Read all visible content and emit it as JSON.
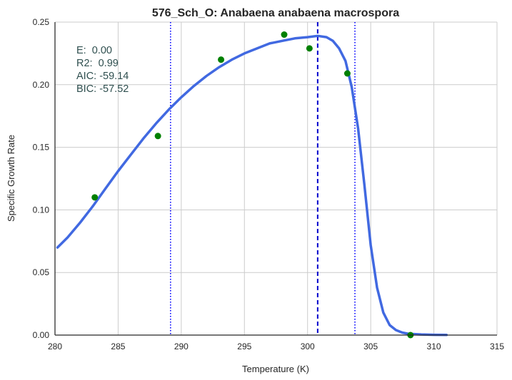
{
  "chart_data": {
    "type": "line",
    "title": "576_Sch_O: Anabaena anabaena macrospora",
    "xlabel": "Temperature (K)",
    "ylabel": "Specific Growth Rate",
    "xlim": [
      280,
      315
    ],
    "ylim": [
      0,
      0.25
    ],
    "xticks": [
      280,
      285,
      290,
      295,
      300,
      305,
      310,
      315
    ],
    "xtick_labels": [
      "280",
      "285",
      "290",
      "295",
      "300",
      "305",
      "310",
      "315"
    ],
    "yticks": [
      0.0,
      0.05,
      0.1,
      0.15,
      0.2,
      0.25
    ],
    "ytick_labels": [
      "0.00",
      "0.05",
      "0.10",
      "0.15",
      "0.20",
      "0.25"
    ],
    "grid": true,
    "stats": [
      "E:  0.00",
      "R2:  0.99",
      "AIC: -59.14",
      "BIC: -57.52"
    ],
    "observed": {
      "color": "#008000",
      "x": [
        283.15,
        288.15,
        293.15,
        298.15,
        300.15,
        303.15,
        308.15
      ],
      "y": [
        0.11,
        0.159,
        0.22,
        0.24,
        0.229,
        0.209,
        0.0
      ]
    },
    "fitted": {
      "color": "#4169e1",
      "x": [
        280.2,
        281,
        282,
        283,
        284,
        285,
        286,
        287,
        288,
        289,
        290,
        291,
        292,
        293,
        294,
        295,
        296,
        297,
        298,
        299,
        300,
        300.8,
        301.5,
        302,
        302.5,
        303,
        303.5,
        304,
        304.5,
        305,
        305.5,
        306,
        306.5,
        307,
        307.5,
        308,
        309,
        310,
        311
      ],
      "y": [
        0.07,
        0.078,
        0.09,
        0.103,
        0.117,
        0.131,
        0.144,
        0.157,
        0.169,
        0.18,
        0.19,
        0.199,
        0.207,
        0.214,
        0.22,
        0.225,
        0.229,
        0.233,
        0.235,
        0.237,
        0.238,
        0.239,
        0.238,
        0.235,
        0.229,
        0.219,
        0.198,
        0.165,
        0.12,
        0.072,
        0.038,
        0.018,
        0.008,
        0.004,
        0.002,
        0.001,
        0.0005,
        0.0002,
        0.0001
      ]
    },
    "vlines": [
      {
        "x": 289.15,
        "style": "dotted",
        "color": "#0000ff"
      },
      {
        "x": 300.8,
        "style": "dashed",
        "color": "#0000cd"
      },
      {
        "x": 303.75,
        "style": "dotted",
        "color": "#0000ff"
      }
    ]
  }
}
